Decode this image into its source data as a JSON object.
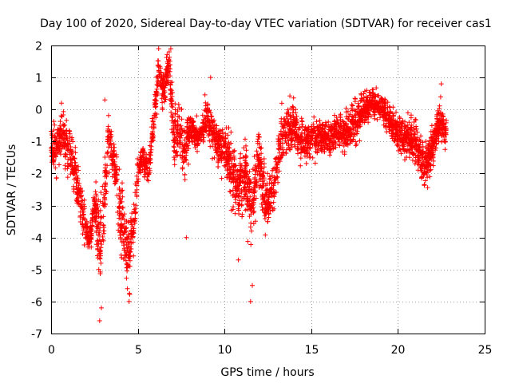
{
  "chart_data": {
    "type": "scatter",
    "title": "Day 100 of 2020, Sidereal Day-to-day VTEC variation (SDTVAR) for receiver cas1",
    "xlabel": "GPS time / hours",
    "ylabel": "SDTVAR / TECUs",
    "xlim": [
      0,
      25
    ],
    "ylim": [
      -7,
      2
    ],
    "xticks": [
      0,
      5,
      10,
      15,
      20,
      25
    ],
    "yticks": [
      -7,
      -6,
      -5,
      -4,
      -3,
      -2,
      -1,
      0,
      1,
      2
    ],
    "xtick_labels": [
      "0",
      "5",
      "10",
      "15",
      "20",
      "25"
    ],
    "ytick_labels": [
      "-7",
      "-6",
      "-5",
      "-4",
      "-3",
      "-2",
      "-1",
      "0",
      "1",
      "2"
    ],
    "grid": true,
    "marker": "plus",
    "color": "#ff0000",
    "trend": [
      {
        "x": 0.0,
        "y": -1.2,
        "s": 0.5
      },
      {
        "x": 0.3,
        "y": -1.3,
        "s": 0.6
      },
      {
        "x": 0.6,
        "y": -0.8,
        "s": 0.6
      },
      {
        "x": 1.0,
        "y": -1.2,
        "s": 0.6
      },
      {
        "x": 1.4,
        "y": -2.0,
        "s": 0.6
      },
      {
        "x": 1.8,
        "y": -3.2,
        "s": 0.6
      },
      {
        "x": 2.2,
        "y": -4.2,
        "s": 0.3
      },
      {
        "x": 2.5,
        "y": -3.0,
        "s": 0.4
      },
      {
        "x": 2.8,
        "y": -4.0,
        "s": 1.2
      },
      {
        "x": 3.0,
        "y": -3.5,
        "s": 1.0
      },
      {
        "x": 3.3,
        "y": -0.8,
        "s": 0.6
      },
      {
        "x": 3.6,
        "y": -1.5,
        "s": 0.5
      },
      {
        "x": 3.9,
        "y": -3.0,
        "s": 0.8
      },
      {
        "x": 4.2,
        "y": -3.8,
        "s": 0.9
      },
      {
        "x": 4.5,
        "y": -4.5,
        "s": 0.9
      },
      {
        "x": 4.8,
        "y": -3.5,
        "s": 0.6
      },
      {
        "x": 5.0,
        "y": -2.0,
        "s": 0.4
      },
      {
        "x": 5.3,
        "y": -1.5,
        "s": 0.3
      },
      {
        "x": 5.6,
        "y": -2.0,
        "s": 0.4
      },
      {
        "x": 5.9,
        "y": -0.5,
        "s": 0.4
      },
      {
        "x": 6.2,
        "y": 1.2,
        "s": 0.5
      },
      {
        "x": 6.5,
        "y": 0.5,
        "s": 0.5
      },
      {
        "x": 6.8,
        "y": 1.5,
        "s": 0.4
      },
      {
        "x": 7.1,
        "y": -1.0,
        "s": 0.8
      },
      {
        "x": 7.4,
        "y": -0.5,
        "s": 0.6
      },
      {
        "x": 7.7,
        "y": -1.5,
        "s": 0.8
      },
      {
        "x": 8.0,
        "y": -0.5,
        "s": 0.4
      },
      {
        "x": 8.5,
        "y": -0.9,
        "s": 0.3
      },
      {
        "x": 9.0,
        "y": -0.2,
        "s": 0.5
      },
      {
        "x": 9.5,
        "y": -1.0,
        "s": 0.5
      },
      {
        "x": 10.0,
        "y": -1.2,
        "s": 0.6
      },
      {
        "x": 10.4,
        "y": -2.0,
        "s": 0.8
      },
      {
        "x": 10.8,
        "y": -2.5,
        "s": 0.8
      },
      {
        "x": 11.2,
        "y": -2.0,
        "s": 0.8
      },
      {
        "x": 11.6,
        "y": -3.0,
        "s": 0.9
      },
      {
        "x": 12.0,
        "y": -1.5,
        "s": 0.8
      },
      {
        "x": 12.4,
        "y": -3.0,
        "s": 0.6
      },
      {
        "x": 12.8,
        "y": -2.5,
        "s": 0.6
      },
      {
        "x": 13.2,
        "y": -1.0,
        "s": 0.6
      },
      {
        "x": 13.6,
        "y": -0.7,
        "s": 0.6
      },
      {
        "x": 14.0,
        "y": -0.5,
        "s": 0.5
      },
      {
        "x": 14.5,
        "y": -1.0,
        "s": 0.5
      },
      {
        "x": 15.0,
        "y": -1.0,
        "s": 0.4
      },
      {
        "x": 15.5,
        "y": -0.8,
        "s": 0.4
      },
      {
        "x": 16.0,
        "y": -1.0,
        "s": 0.4
      },
      {
        "x": 16.5,
        "y": -0.6,
        "s": 0.4
      },
      {
        "x": 17.0,
        "y": -0.8,
        "s": 0.5
      },
      {
        "x": 17.5,
        "y": -0.5,
        "s": 0.6
      },
      {
        "x": 18.0,
        "y": 0.0,
        "s": 0.4
      },
      {
        "x": 18.5,
        "y": 0.2,
        "s": 0.3
      },
      {
        "x": 19.0,
        "y": 0.1,
        "s": 0.3
      },
      {
        "x": 19.5,
        "y": -0.3,
        "s": 0.4
      },
      {
        "x": 20.0,
        "y": -0.8,
        "s": 0.4
      },
      {
        "x": 20.5,
        "y": -0.8,
        "s": 0.5
      },
      {
        "x": 21.0,
        "y": -1.0,
        "s": 0.5
      },
      {
        "x": 21.5,
        "y": -1.8,
        "s": 0.5
      },
      {
        "x": 22.0,
        "y": -1.2,
        "s": 0.5
      },
      {
        "x": 22.4,
        "y": -0.3,
        "s": 0.4
      },
      {
        "x": 22.8,
        "y": -0.8,
        "s": 0.4
      }
    ],
    "extremes": [
      {
        "x": 2.8,
        "y": -6.6
      },
      {
        "x": 2.9,
        "y": -6.2
      },
      {
        "x": 2.75,
        "y": -5.0
      },
      {
        "x": 4.5,
        "y": -6.0
      },
      {
        "x": 4.4,
        "y": -5.6
      },
      {
        "x": 6.2,
        "y": 1.9
      },
      {
        "x": 6.9,
        "y": 1.9
      },
      {
        "x": 7.8,
        "y": -4.0
      },
      {
        "x": 11.5,
        "y": -6.0
      },
      {
        "x": 11.6,
        "y": -5.5
      },
      {
        "x": 10.8,
        "y": -4.7
      },
      {
        "x": 9.2,
        "y": 1.0
      },
      {
        "x": 0.6,
        "y": 0.2
      },
      {
        "x": 3.1,
        "y": 0.3
      },
      {
        "x": 18.2,
        "y": 0.6
      },
      {
        "x": 22.5,
        "y": 0.8
      }
    ],
    "point_count": 3800,
    "seed": 20200409
  }
}
